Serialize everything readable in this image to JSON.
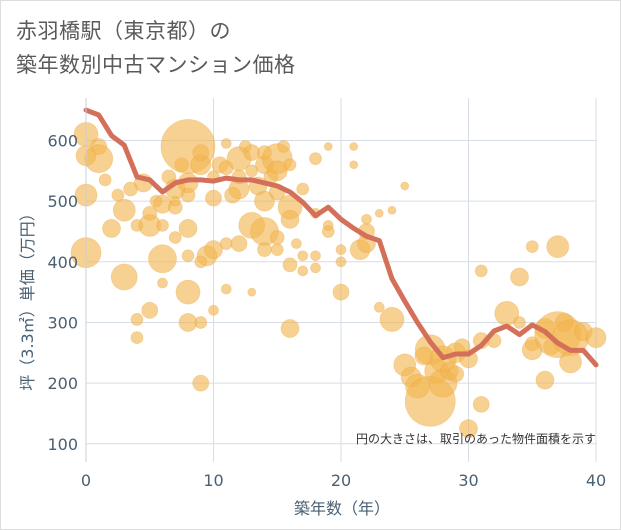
{
  "title_line1": "赤羽橋駅（東京都）の",
  "title_line2": "築年数別中古マンション価格",
  "chart_data": {
    "type": "scatter",
    "xlabel": "築年数（年）",
    "ylabel": "坪（3.3㎡）単価（万円）",
    "xlim": [
      0,
      40
    ],
    "ylim": [
      70,
      670
    ],
    "xticks": [
      0,
      10,
      20,
      30,
      40
    ],
    "yticks": [
      100,
      200,
      300,
      400,
      500,
      600
    ],
    "annotation": "円の大きさは、取引のあった物件面積を示す",
    "colors": {
      "bubble": "#f2b54f",
      "line": "#d4705a",
      "grid": "#d6dde6",
      "axis_text": "#4a6073"
    },
    "trend_line": {
      "x": [
        0,
        1,
        2,
        3,
        4,
        5,
        6,
        7,
        8,
        9,
        10,
        11,
        12,
        13,
        14,
        15,
        16,
        17,
        18,
        19,
        20,
        21,
        22,
        23,
        24,
        25,
        26,
        27,
        28,
        29,
        30,
        31,
        32,
        33,
        34,
        35,
        36,
        37,
        38,
        39,
        40
      ],
      "y": [
        650,
        642,
        608,
        592,
        540,
        535,
        515,
        530,
        535,
        535,
        533,
        538,
        535,
        535,
        530,
        525,
        515,
        498,
        476,
        490,
        470,
        455,
        442,
        435,
        372,
        335,
        300,
        268,
        242,
        248,
        248,
        262,
        286,
        294,
        280,
        296,
        285,
        266,
        254,
        254,
        230
      ]
    },
    "bubbles": [
      {
        "x": 0,
        "y": 610,
        "r": 12
      },
      {
        "x": 0,
        "y": 575,
        "r": 10
      },
      {
        "x": 0,
        "y": 510,
        "r": 11
      },
      {
        "x": 0,
        "y": 415,
        "r": 15
      },
      {
        "x": 1,
        "y": 590,
        "r": 8
      },
      {
        "x": 1,
        "y": 570,
        "r": 14
      },
      {
        "x": 1.5,
        "y": 535,
        "r": 6
      },
      {
        "x": 2,
        "y": 455,
        "r": 9
      },
      {
        "x": 2.5,
        "y": 510,
        "r": 6
      },
      {
        "x": 3,
        "y": 485,
        "r": 11
      },
      {
        "x": 3,
        "y": 375,
        "r": 13
      },
      {
        "x": 3.5,
        "y": 520,
        "r": 7
      },
      {
        "x": 4,
        "y": 275,
        "r": 6
      },
      {
        "x": 4,
        "y": 305,
        "r": 6
      },
      {
        "x": 4,
        "y": 460,
        "r": 6
      },
      {
        "x": 4.5,
        "y": 530,
        "r": 9
      },
      {
        "x": 5,
        "y": 460,
        "r": 11
      },
      {
        "x": 5,
        "y": 480,
        "r": 7
      },
      {
        "x": 5,
        "y": 320,
        "r": 8
      },
      {
        "x": 5.5,
        "y": 500,
        "r": 6
      },
      {
        "x": 6,
        "y": 405,
        "r": 14
      },
      {
        "x": 6,
        "y": 365,
        "r": 5
      },
      {
        "x": 6,
        "y": 460,
        "r": 6
      },
      {
        "x": 6,
        "y": 495,
        "r": 9
      },
      {
        "x": 6.5,
        "y": 540,
        "r": 7
      },
      {
        "x": 7,
        "y": 520,
        "r": 10
      },
      {
        "x": 7,
        "y": 490,
        "r": 7
      },
      {
        "x": 7,
        "y": 440,
        "r": 6
      },
      {
        "x": 7,
        "y": 500,
        "r": 5
      },
      {
        "x": 7.5,
        "y": 560,
        "r": 7
      },
      {
        "x": 8,
        "y": 590,
        "r": 27
      },
      {
        "x": 8,
        "y": 455,
        "r": 9
      },
      {
        "x": 8,
        "y": 350,
        "r": 12
      },
      {
        "x": 8,
        "y": 300,
        "r": 9
      },
      {
        "x": 8,
        "y": 410,
        "r": 6
      },
      {
        "x": 8,
        "y": 530,
        "r": 10
      },
      {
        "x": 8,
        "y": 510,
        "r": 7
      },
      {
        "x": 9,
        "y": 200,
        "r": 8
      },
      {
        "x": 9,
        "y": 300,
        "r": 6
      },
      {
        "x": 9,
        "y": 400,
        "r": 6
      },
      {
        "x": 9,
        "y": 560,
        "r": 10
      },
      {
        "x": 9,
        "y": 580,
        "r": 8
      },
      {
        "x": 9.5,
        "y": 410,
        "r": 10
      },
      {
        "x": 10,
        "y": 420,
        "r": 9
      },
      {
        "x": 10,
        "y": 505,
        "r": 8
      },
      {
        "x": 10,
        "y": 540,
        "r": 6
      },
      {
        "x": 10,
        "y": 320,
        "r": 5
      },
      {
        "x": 10.5,
        "y": 560,
        "r": 8
      },
      {
        "x": 11,
        "y": 555,
        "r": 7
      },
      {
        "x": 11,
        "y": 595,
        "r": 5
      },
      {
        "x": 11,
        "y": 355,
        "r": 5
      },
      {
        "x": 11,
        "y": 430,
        "r": 6
      },
      {
        "x": 11.5,
        "y": 510,
        "r": 8
      },
      {
        "x": 12,
        "y": 570,
        "r": 12
      },
      {
        "x": 12,
        "y": 520,
        "r": 10
      },
      {
        "x": 12,
        "y": 430,
        "r": 8
      },
      {
        "x": 12,
        "y": 540,
        "r": 7
      },
      {
        "x": 12.5,
        "y": 590,
        "r": 6
      },
      {
        "x": 13,
        "y": 460,
        "r": 13
      },
      {
        "x": 13,
        "y": 580,
        "r": 8
      },
      {
        "x": 13,
        "y": 350,
        "r": 4
      },
      {
        "x": 13,
        "y": 550,
        "r": 6
      },
      {
        "x": 13.5,
        "y": 525,
        "r": 9
      },
      {
        "x": 14,
        "y": 500,
        "r": 10
      },
      {
        "x": 14,
        "y": 450,
        "r": 14
      },
      {
        "x": 14,
        "y": 560,
        "r": 9
      },
      {
        "x": 14,
        "y": 420,
        "r": 7
      },
      {
        "x": 14,
        "y": 580,
        "r": 7
      },
      {
        "x": 14.5,
        "y": 540,
        "r": 7
      },
      {
        "x": 15,
        "y": 570,
        "r": 15
      },
      {
        "x": 15,
        "y": 550,
        "r": 10
      },
      {
        "x": 15,
        "y": 515,
        "r": 8
      },
      {
        "x": 15,
        "y": 420,
        "r": 6
      },
      {
        "x": 15,
        "y": 440,
        "r": 7
      },
      {
        "x": 15.5,
        "y": 590,
        "r": 6
      },
      {
        "x": 16,
        "y": 490,
        "r": 12
      },
      {
        "x": 16,
        "y": 470,
        "r": 9
      },
      {
        "x": 16,
        "y": 395,
        "r": 7
      },
      {
        "x": 16,
        "y": 290,
        "r": 9
      },
      {
        "x": 16,
        "y": 560,
        "r": 6
      },
      {
        "x": 16.5,
        "y": 430,
        "r": 5
      },
      {
        "x": 17,
        "y": 385,
        "r": 5
      },
      {
        "x": 17,
        "y": 410,
        "r": 5
      },
      {
        "x": 17,
        "y": 520,
        "r": 6
      },
      {
        "x": 18,
        "y": 570,
        "r": 6
      },
      {
        "x": 18,
        "y": 410,
        "r": 5
      },
      {
        "x": 18,
        "y": 390,
        "r": 5
      },
      {
        "x": 18,
        "y": 480,
        "r": 5
      },
      {
        "x": 19,
        "y": 590,
        "r": 4
      },
      {
        "x": 19,
        "y": 450,
        "r": 6
      },
      {
        "x": 19,
        "y": 460,
        "r": 5
      },
      {
        "x": 20,
        "y": 350,
        "r": 8
      },
      {
        "x": 20,
        "y": 420,
        "r": 5
      },
      {
        "x": 20,
        "y": 400,
        "r": 5
      },
      {
        "x": 21,
        "y": 590,
        "r": 4
      },
      {
        "x": 21,
        "y": 560,
        "r": 4
      },
      {
        "x": 21.5,
        "y": 420,
        "r": 10
      },
      {
        "x": 22,
        "y": 430,
        "r": 9
      },
      {
        "x": 22,
        "y": 450,
        "r": 8
      },
      {
        "x": 22,
        "y": 470,
        "r": 5
      },
      {
        "x": 23,
        "y": 480,
        "r": 4
      },
      {
        "x": 23,
        "y": 325,
        "r": 5
      },
      {
        "x": 24,
        "y": 305,
        "r": 12
      },
      {
        "x": 24,
        "y": 485,
        "r": 4
      },
      {
        "x": 25,
        "y": 525,
        "r": 4
      },
      {
        "x": 25,
        "y": 230,
        "r": 11
      },
      {
        "x": 25.5,
        "y": 210,
        "r": 10
      },
      {
        "x": 26,
        "y": 195,
        "r": 12
      },
      {
        "x": 26.5,
        "y": 245,
        "r": 9
      },
      {
        "x": 27,
        "y": 170,
        "r": 25
      },
      {
        "x": 27,
        "y": 255,
        "r": 15
      },
      {
        "x": 27.5,
        "y": 220,
        "r": 12
      },
      {
        "x": 28,
        "y": 200,
        "r": 14
      },
      {
        "x": 28,
        "y": 240,
        "r": 13
      },
      {
        "x": 28.5,
        "y": 220,
        "r": 9
      },
      {
        "x": 29,
        "y": 250,
        "r": 10
      },
      {
        "x": 29,
        "y": 215,
        "r": 8
      },
      {
        "x": 29.5,
        "y": 260,
        "r": 8
      },
      {
        "x": 30,
        "y": 240,
        "r": 9
      },
      {
        "x": 30,
        "y": 125,
        "r": 9
      },
      {
        "x": 31,
        "y": 165,
        "r": 8
      },
      {
        "x": 31,
        "y": 270,
        "r": 8
      },
      {
        "x": 31,
        "y": 385,
        "r": 6
      },
      {
        "x": 32,
        "y": 270,
        "r": 7
      },
      {
        "x": 33,
        "y": 315,
        "r": 12
      },
      {
        "x": 34,
        "y": 375,
        "r": 9
      },
      {
        "x": 34,
        "y": 300,
        "r": 6
      },
      {
        "x": 35,
        "y": 255,
        "r": 10
      },
      {
        "x": 35,
        "y": 425,
        "r": 6
      },
      {
        "x": 35,
        "y": 265,
        "r": 7
      },
      {
        "x": 36,
        "y": 205,
        "r": 9
      },
      {
        "x": 36,
        "y": 290,
        "r": 10
      },
      {
        "x": 36.5,
        "y": 260,
        "r": 8
      },
      {
        "x": 37,
        "y": 425,
        "r": 11
      },
      {
        "x": 37,
        "y": 280,
        "r": 23
      },
      {
        "x": 37.5,
        "y": 300,
        "r": 9
      },
      {
        "x": 38,
        "y": 275,
        "r": 18
      },
      {
        "x": 38,
        "y": 235,
        "r": 11
      },
      {
        "x": 39,
        "y": 285,
        "r": 9
      },
      {
        "x": 40,
        "y": 275,
        "r": 10
      }
    ]
  }
}
